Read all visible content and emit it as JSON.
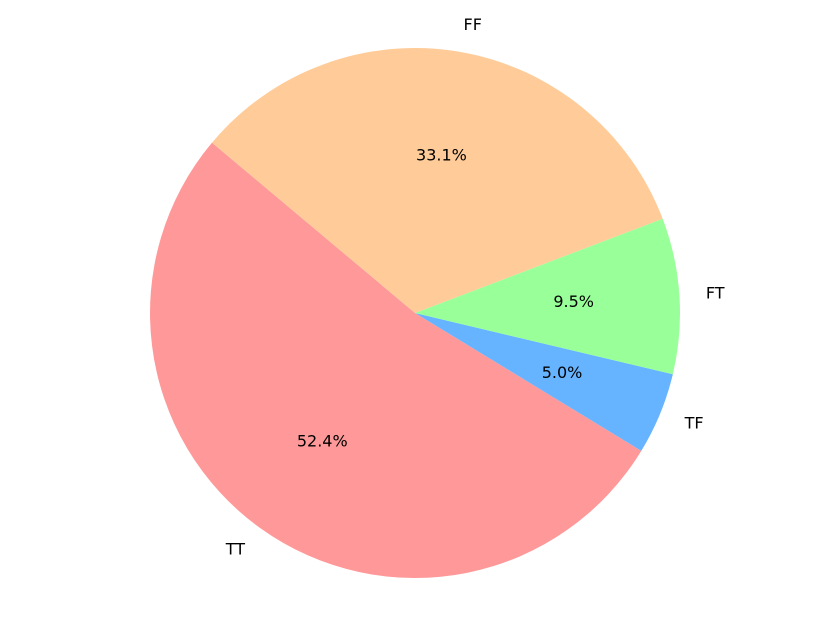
{
  "chart_data": {
    "type": "pie",
    "categories": [
      "TT",
      "TF",
      "FT",
      "FF"
    ],
    "values": [
      52.4,
      5.0,
      9.5,
      33.1
    ],
    "value_labels": [
      "52.4%",
      "5.0%",
      "9.5%",
      "33.1%"
    ],
    "colors": [
      "#ff9999",
      "#66b3ff",
      "#99ff99",
      "#ffcc99"
    ]
  }
}
